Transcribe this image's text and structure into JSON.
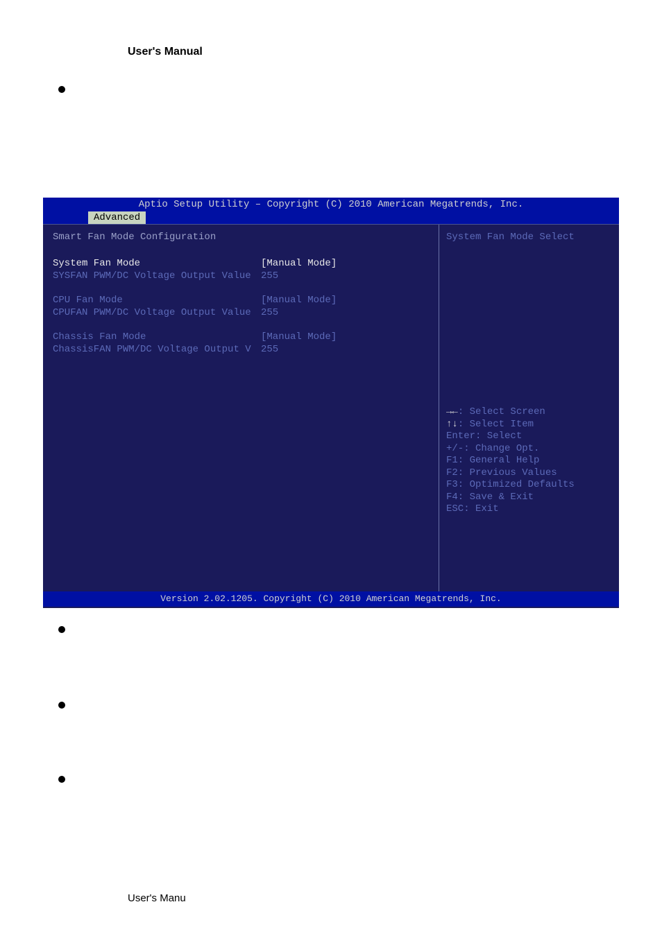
{
  "page": {
    "header": "User's Manual",
    "footer": "User's Manu"
  },
  "bios": {
    "title": "Aptio Setup Utility – Copyright (C) 2010 American Megatrends, Inc.",
    "tab": "Advanced",
    "section_title": "Smart Fan Mode Configuration",
    "groups": [
      {
        "rows": [
          {
            "label": "System Fan Mode",
            "value": "[Manual Mode]",
            "selected": true
          },
          {
            "label": "SYSFAN PWM/DC Voltage Output Value",
            "value": "255",
            "selected": false
          }
        ]
      },
      {
        "rows": [
          {
            "label": "CPU Fan Mode",
            "value": "[Manual Mode]",
            "selected": false
          },
          {
            "label": "CPUFAN PWM/DC Voltage Output Value",
            "value": "255",
            "selected": false
          }
        ]
      },
      {
        "rows": [
          {
            "label": "Chassis Fan Mode",
            "value": "[Manual Mode]",
            "selected": false
          },
          {
            "label": "ChassisFAN PWM/DC Voltage Output V",
            "value": "255",
            "selected": false
          }
        ]
      }
    ],
    "help_title": "System Fan Mode Select",
    "help_lines": [
      {
        "prefix": "→←",
        "text": ": Select Screen",
        "white_prefix": true
      },
      {
        "prefix": "↑↓",
        "text": ": Select Item",
        "white_prefix": true
      },
      {
        "prefix": "Enter",
        "text": ": Select",
        "white_prefix": false
      },
      {
        "prefix": "+/-",
        "text": ": Change Opt.",
        "white_prefix": false
      },
      {
        "prefix": "F1",
        "text": ": General Help",
        "white_prefix": false
      },
      {
        "prefix": "F2",
        "text": ": Previous Values",
        "white_prefix": false
      },
      {
        "prefix": "F3",
        "text": ": Optimized Defaults",
        "white_prefix": false
      },
      {
        "prefix": "F4",
        "text": ": Save & Exit",
        "white_prefix": false
      },
      {
        "prefix": "ESC",
        "text": ": Exit",
        "white_prefix": false
      }
    ],
    "footer": "Version 2.02.1205. Copyright (C) 2010 American Megatrends, Inc.",
    "colors": {
      "titlebar_bg": "#0010a3",
      "body_bg": "#1a1a5a",
      "label_color": "#5c6ab8",
      "selected_color": "#e8e8e8",
      "tab_bg": "#c8d4c0",
      "border_color": "#6a74a8"
    }
  }
}
